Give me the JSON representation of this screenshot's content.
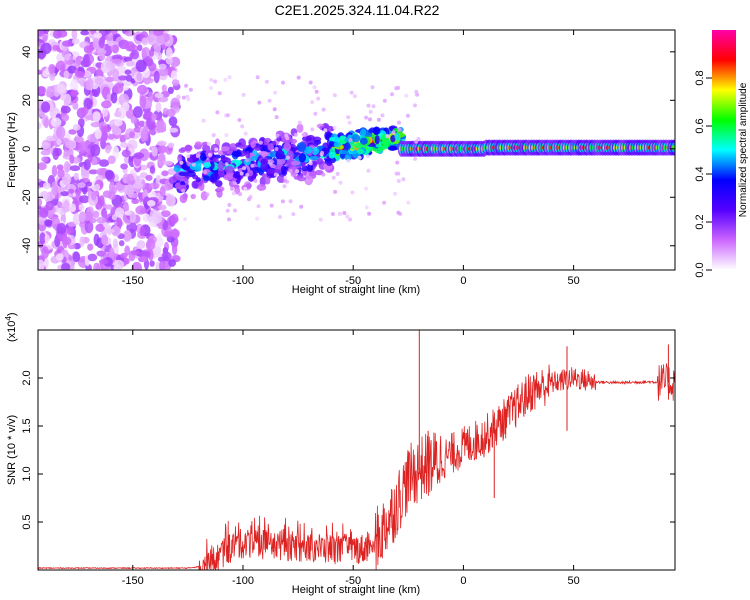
{
  "chart_data": [
    {
      "type": "heatmap",
      "title": "C2E1.2025.324.11.04.R22",
      "xlabel": "Height of straight line (km)",
      "ylabel": "Frequency (Hz)",
      "xlim": [
        -193,
        96
      ],
      "ylim": [
        -50,
        49
      ],
      "xticks": [
        -150,
        -100,
        -50,
        0,
        50
      ],
      "yticks": [
        -40,
        -20,
        0,
        20,
        40
      ],
      "colorbar": {
        "label": "Normalized spectral amplitude",
        "range": [
          0.0,
          1.0
        ],
        "ticks": [
          "0.0",
          "0.2",
          "0.4",
          "0.6",
          "0.8"
        ],
        "tick_values": [
          0.0,
          0.2,
          0.4,
          0.6,
          0.8
        ],
        "colors": [
          "#ffffff",
          "#cc66ff",
          "#5500ff",
          "#0000ff",
          "#00ffff",
          "#00ff00",
          "#ffff00",
          "#ff0000",
          "#ff00aa"
        ]
      },
      "regions": [
        {
          "x_range": [
            -193,
            -130
          ],
          "freq_center": 0,
          "freq_spread": 49,
          "amplitude": [
            0.02,
            0.18
          ],
          "description_values": "noise"
        },
        {
          "x_range": [
            -130,
            -60
          ],
          "freq_center_start": -10,
          "freq_center_end": 0,
          "freq_spread": 8,
          "amplitude": [
            0.1,
            0.45
          ]
        },
        {
          "x_range": [
            -60,
            -28
          ],
          "freq_center_start": 0,
          "freq_center_end": 5,
          "freq_spread": 4,
          "amplitude": [
            0.3,
            0.75
          ]
        },
        {
          "x_range": [
            -28,
            96
          ],
          "freq_center": 0,
          "freq_spread": 2,
          "amplitude": [
            0.6,
            0.95
          ]
        }
      ]
    },
    {
      "type": "line",
      "title": "",
      "xlabel": "Height of straight line (km)",
      "ylabel": "SNR (10 * v/v)",
      "multiplier": "(x10",
      "multiplier_exp": "4",
      "multiplier_close": ")",
      "xlim": [
        -193,
        96
      ],
      "ylim": [
        0,
        2.5
      ],
      "xticks": [
        -150,
        -100,
        -50,
        0,
        50
      ],
      "yticks": [
        0.5,
        1.0,
        1.5,
        2.0
      ],
      "ytick_labels": [
        "0.5",
        "1.0",
        "1.5",
        "2.0"
      ],
      "color": "#dd2222",
      "trend_points": [
        {
          "x": -193,
          "y": 0.02
        },
        {
          "x": -125,
          "y": 0.02
        },
        {
          "x": -115,
          "y": 0.05
        },
        {
          "x": -108,
          "y": 0.2
        },
        {
          "x": -100,
          "y": 0.28
        },
        {
          "x": -80,
          "y": 0.25
        },
        {
          "x": -60,
          "y": 0.22
        },
        {
          "x": -45,
          "y": 0.22
        },
        {
          "x": -38,
          "y": 0.35
        },
        {
          "x": -30,
          "y": 0.7
        },
        {
          "x": -25,
          "y": 0.95
        },
        {
          "x": -20,
          "y": 1.05
        },
        {
          "x": -10,
          "y": 1.15
        },
        {
          "x": 0,
          "y": 1.28
        },
        {
          "x": 10,
          "y": 1.4
        },
        {
          "x": 20,
          "y": 1.6
        },
        {
          "x": 30,
          "y": 1.85
        },
        {
          "x": 40,
          "y": 1.95
        },
        {
          "x": 50,
          "y": 2.0
        },
        {
          "x": 60,
          "y": 1.96
        },
        {
          "x": 70,
          "y": 1.95
        },
        {
          "x": 85,
          "y": 1.96
        },
        {
          "x": 96,
          "y": 1.95
        }
      ],
      "spikes": [
        {
          "x": -20,
          "y": 2.5
        },
        {
          "x": -16,
          "y": 1.45
        },
        {
          "x": 14,
          "y": 0.75
        },
        {
          "x": 47,
          "y": 2.33
        },
        {
          "x": 47,
          "y": 1.45
        },
        {
          "x": 93,
          "y": 2.35
        }
      ]
    }
  ]
}
